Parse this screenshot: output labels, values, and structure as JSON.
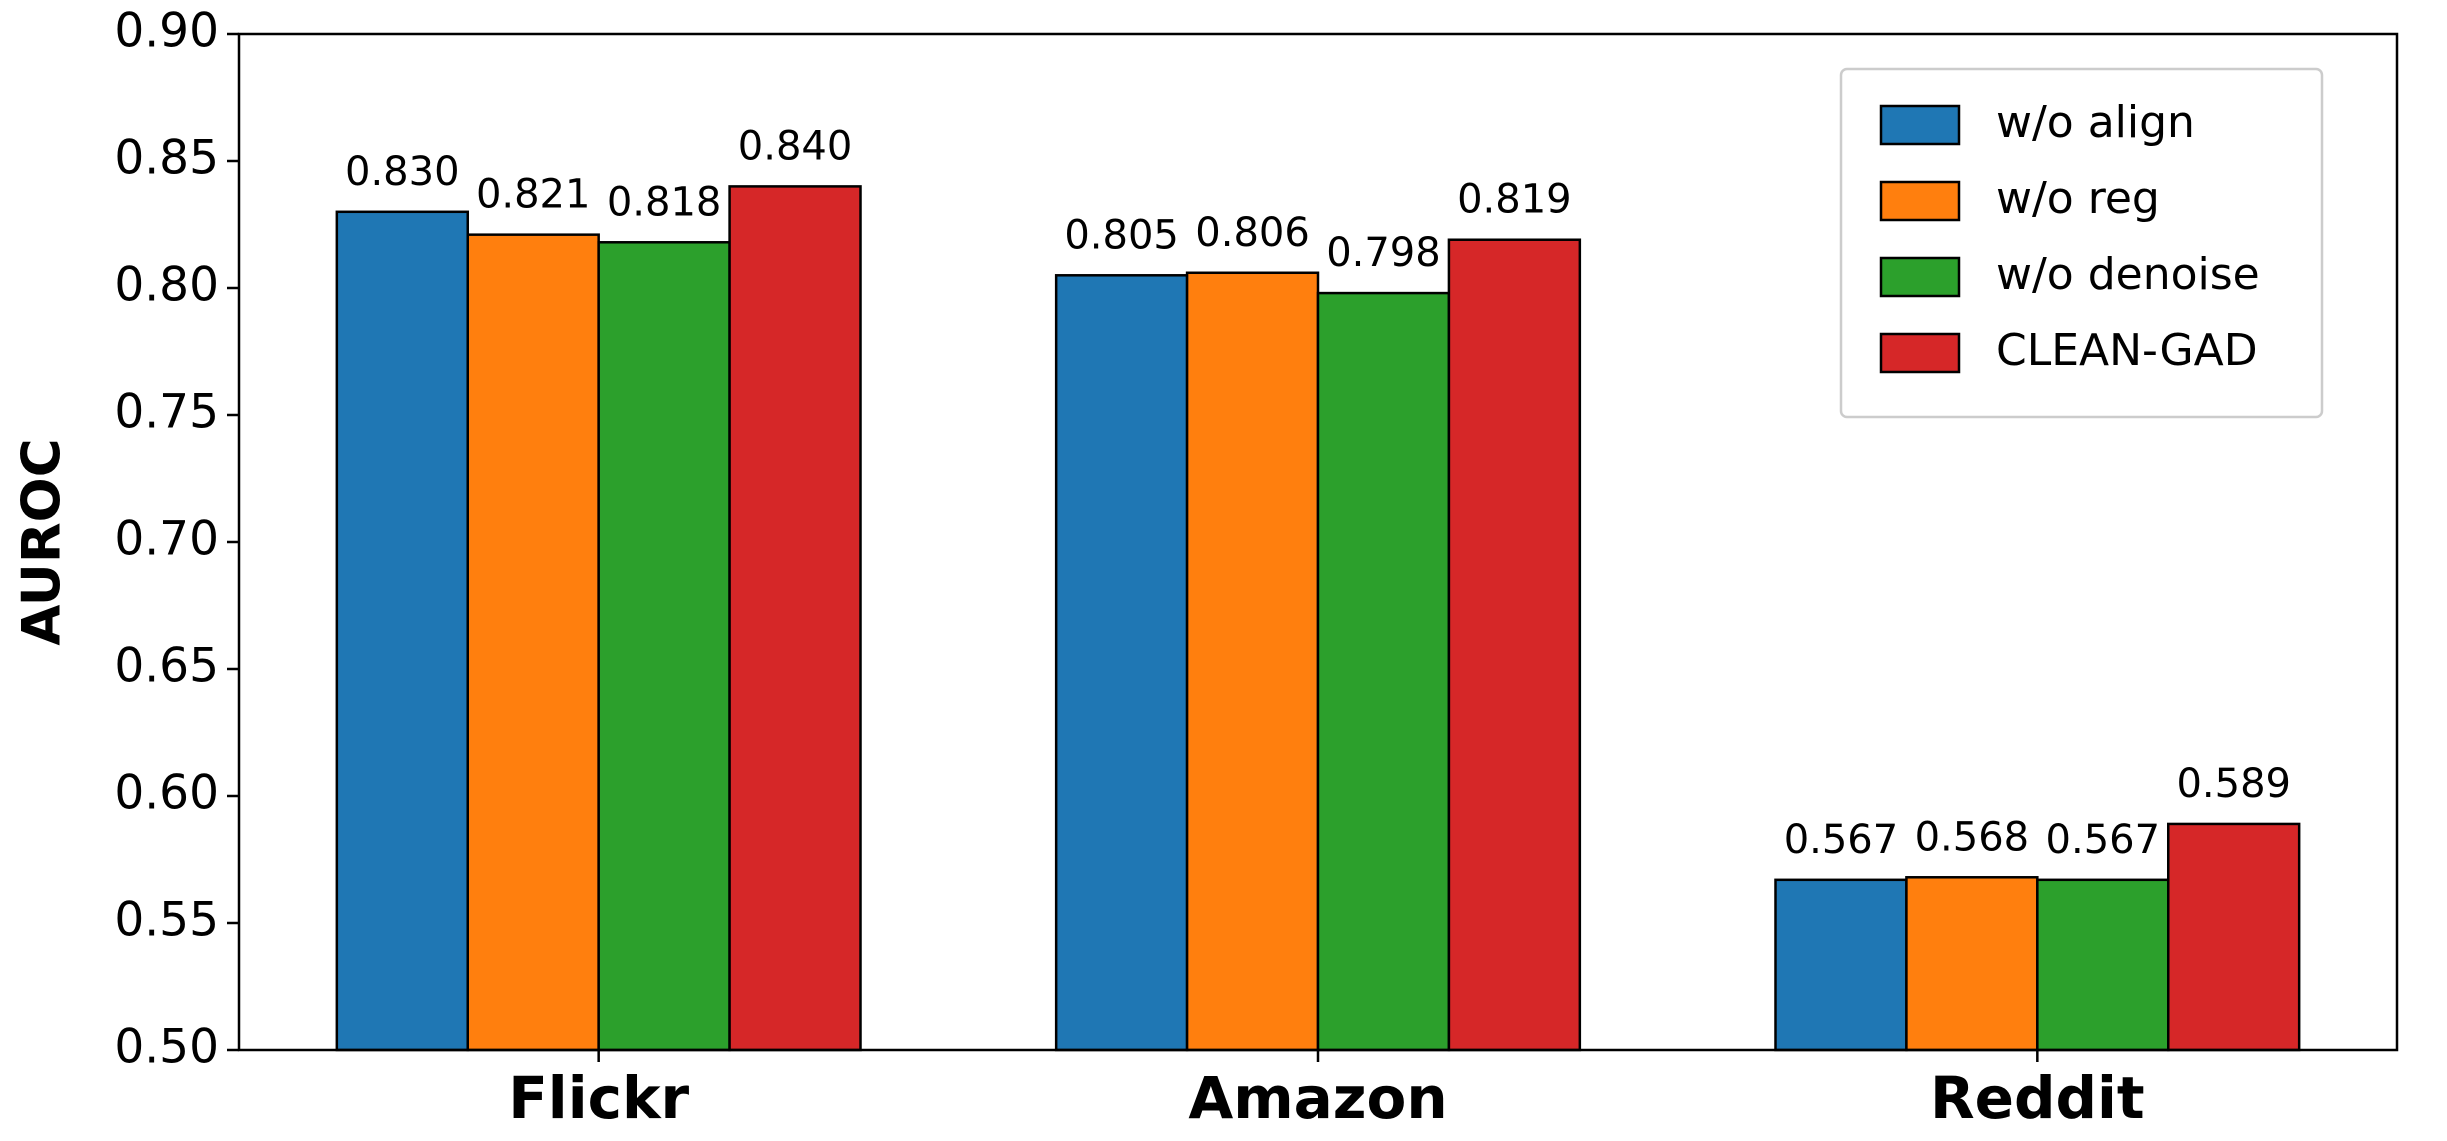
{
  "chart_data": {
    "type": "bar",
    "y_label": "AUROC",
    "categories": [
      "Flickr",
      "Amazon",
      "Reddit"
    ],
    "series": [
      {
        "name": "w/o align",
        "color": "#1f77b4",
        "values": [
          0.83,
          0.805,
          0.567
        ],
        "value_labels": [
          "0.830",
          "0.805",
          "0.567"
        ]
      },
      {
        "name": "w/o reg",
        "color": "#ff7f0e",
        "values": [
          0.821,
          0.806,
          0.568
        ],
        "value_labels": [
          "0.821",
          "0.806",
          "0.568"
        ]
      },
      {
        "name": "w/o denoise",
        "color": "#2ca02c",
        "values": [
          0.818,
          0.798,
          0.567
        ],
        "value_labels": [
          "0.818",
          "0.798",
          "0.567"
        ]
      },
      {
        "name": "CLEAN-GAD",
        "color": "#d62728",
        "values": [
          0.84,
          0.819,
          0.589
        ],
        "value_labels": [
          "0.840",
          "0.819",
          "0.589"
        ]
      }
    ],
    "ylim": [
      0.5,
      0.9
    ],
    "yticks": [
      {
        "value": 0.5,
        "label": "0.50"
      },
      {
        "value": 0.55,
        "label": "0.55"
      },
      {
        "value": 0.6,
        "label": "0.60"
      },
      {
        "value": 0.65,
        "label": "0.65"
      },
      {
        "value": 0.7,
        "label": "0.70"
      },
      {
        "value": 0.75,
        "label": "0.75"
      },
      {
        "value": 0.8,
        "label": "0.80"
      },
      {
        "value": 0.85,
        "label": "0.85"
      },
      {
        "value": 0.9,
        "label": "0.90"
      }
    ],
    "legend": "upper right"
  }
}
